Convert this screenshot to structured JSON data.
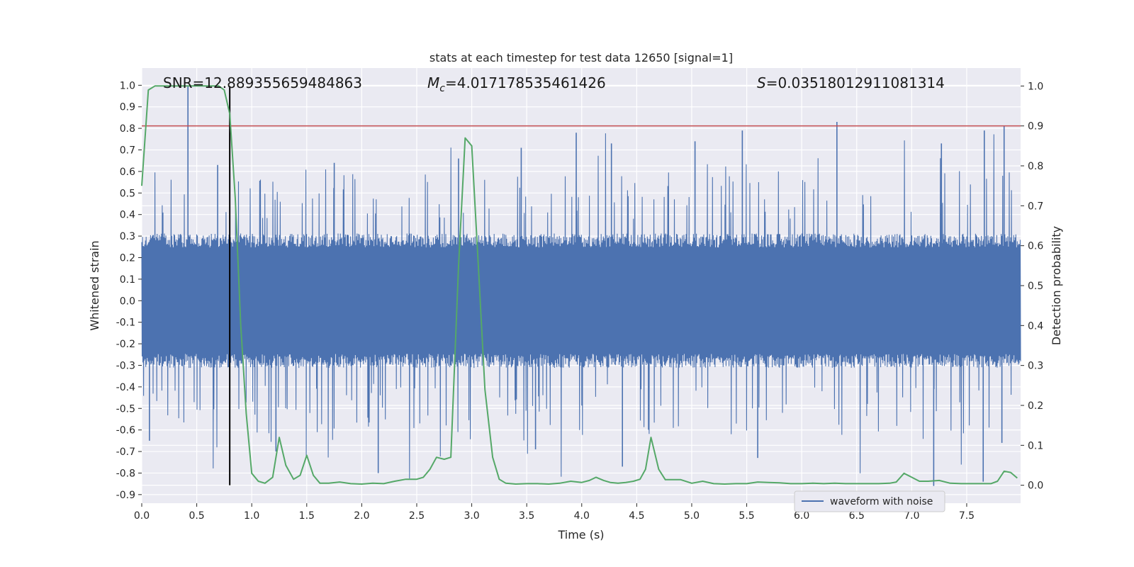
{
  "chart_data": {
    "type": "line",
    "title": "stats at each timestep for test data 12650 [signal=1]",
    "annotations": {
      "snr": "SNR=12.889355659484863",
      "mc_symbol": "M",
      "mc_sub": "c",
      "mc_value": "=4.017178535461426",
      "s_symbol": "S",
      "s_value": "=0.03518012911081314"
    },
    "xlabel": "Time (s)",
    "ylabel": "Whitened strain",
    "y2label": "Detection probability",
    "xlim": [
      0.0,
      7.99
    ],
    "ylim": [
      -0.94,
      1.08
    ],
    "y2lim": [
      -0.045,
      1.045
    ],
    "x_ticks": [
      "0.0",
      "0.5",
      "1.0",
      "1.5",
      "2.0",
      "2.5",
      "3.0",
      "3.5",
      "4.0",
      "4.5",
      "5.0",
      "5.5",
      "6.0",
      "6.5",
      "7.0",
      "7.5"
    ],
    "y_ticks": [
      "1.0",
      "0.9",
      "0.8",
      "0.7",
      "0.6",
      "0.5",
      "0.4",
      "0.3",
      "0.2",
      "0.1",
      "0.0",
      "-0.1",
      "-0.2",
      "-0.3",
      "-0.4",
      "-0.5",
      "-0.6",
      "-0.7",
      "-0.8",
      "-0.9"
    ],
    "y2_ticks": [
      "1.0",
      "0.9",
      "0.8",
      "0.7",
      "0.6",
      "0.5",
      "0.4",
      "0.3",
      "0.2",
      "0.1",
      "0.0"
    ],
    "grid": true,
    "legend": {
      "location": "lower-right",
      "entries": [
        "waveform with noise"
      ]
    },
    "threshold_line": {
      "y2": 0.9,
      "color": "#c44e52"
    },
    "marker_line": {
      "x": 0.8,
      "y2_range": [
        0.0,
        1.0
      ],
      "color": "#000000"
    },
    "waveform": {
      "name": "waveform with noise",
      "color": "#4c72b0",
      "x_range": [
        0.0,
        7.99
      ],
      "typical_amplitude": 0.26,
      "spikes": [
        {
          "x": 0.42,
          "y": 1.0
        },
        {
          "x": 0.69,
          "y": 0.63
        },
        {
          "x": 1.75,
          "y": 0.64
        },
        {
          "x": 2.88,
          "y": 0.66
        },
        {
          "x": 3.45,
          "y": 0.71
        },
        {
          "x": 3.95,
          "y": 0.78
        },
        {
          "x": 4.27,
          "y": 0.73
        },
        {
          "x": 5.03,
          "y": 0.74
        },
        {
          "x": 5.46,
          "y": 0.79
        },
        {
          "x": 6.32,
          "y": 0.83
        },
        {
          "x": 7.27,
          "y": 0.73
        },
        {
          "x": 7.66,
          "y": 0.79
        },
        {
          "x": 7.84,
          "y": 0.81
        },
        {
          "x": 0.07,
          "y": -0.65
        },
        {
          "x": 1.22,
          "y": -0.7
        },
        {
          "x": 2.15,
          "y": -0.8
        },
        {
          "x": 3.58,
          "y": -0.69
        },
        {
          "x": 4.37,
          "y": -0.77
        },
        {
          "x": 5.6,
          "y": -0.73
        },
        {
          "x": 7.2,
          "y": -0.86
        },
        {
          "x": 7.65,
          "y": -0.84
        },
        {
          "x": 7.82,
          "y": -0.66
        }
      ]
    },
    "probability": {
      "name": "Detection probability",
      "color": "#55a868",
      "x": [
        0.0,
        0.06,
        0.12,
        0.2,
        0.3,
        0.4,
        0.5,
        0.6,
        0.7,
        0.75,
        0.8,
        0.85,
        0.9,
        0.95,
        1.0,
        1.06,
        1.12,
        1.19,
        1.25,
        1.31,
        1.38,
        1.44,
        1.5,
        1.56,
        1.62,
        1.7,
        1.8,
        1.9,
        2.0,
        2.1,
        2.2,
        2.3,
        2.4,
        2.5,
        2.56,
        2.62,
        2.68,
        2.75,
        2.81,
        2.88,
        2.94,
        3.0,
        3.06,
        3.12,
        3.19,
        3.25,
        3.31,
        3.4,
        3.5,
        3.6,
        3.7,
        3.8,
        3.9,
        4.0,
        4.07,
        4.13,
        4.2,
        4.26,
        4.33,
        4.4,
        4.47,
        4.53,
        4.58,
        4.63,
        4.7,
        4.76,
        4.9,
        5.0,
        5.1,
        5.2,
        5.3,
        5.4,
        5.5,
        5.6,
        5.7,
        5.8,
        5.9,
        6.0,
        6.1,
        6.2,
        6.3,
        6.4,
        6.5,
        6.6,
        6.7,
        6.8,
        6.86,
        6.93,
        7.0,
        7.07,
        7.15,
        7.25,
        7.35,
        7.45,
        7.55,
        7.65,
        7.72,
        7.78,
        7.84,
        7.9,
        7.96
      ],
      "y": [
        0.75,
        0.99,
        1.0,
        1.0,
        1.0,
        1.0,
        1.0,
        1.0,
        1.0,
        0.99,
        0.93,
        0.72,
        0.4,
        0.18,
        0.03,
        0.01,
        0.005,
        0.02,
        0.12,
        0.05,
        0.015,
        0.025,
        0.075,
        0.025,
        0.005,
        0.005,
        0.008,
        0.004,
        0.003,
        0.005,
        0.004,
        0.01,
        0.015,
        0.015,
        0.02,
        0.04,
        0.07,
        0.065,
        0.07,
        0.55,
        0.87,
        0.85,
        0.55,
        0.24,
        0.07,
        0.015,
        0.005,
        0.003,
        0.004,
        0.004,
        0.003,
        0.005,
        0.01,
        0.007,
        0.012,
        0.02,
        0.012,
        0.007,
        0.005,
        0.007,
        0.01,
        0.015,
        0.04,
        0.12,
        0.04,
        0.014,
        0.014,
        0.005,
        0.01,
        0.004,
        0.003,
        0.004,
        0.004,
        0.008,
        0.007,
        0.006,
        0.004,
        0.004,
        0.005,
        0.004,
        0.005,
        0.004,
        0.004,
        0.004,
        0.004,
        0.005,
        0.008,
        0.03,
        0.02,
        0.01,
        0.01,
        0.012,
        0.005,
        0.004,
        0.004,
        0.004,
        0.004,
        0.01,
        0.035,
        0.032,
        0.018
      ]
    }
  }
}
